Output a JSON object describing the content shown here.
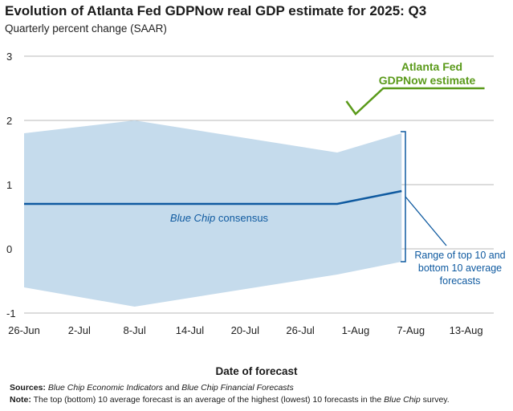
{
  "title": "Evolution of Atlanta Fed GDPNow real GDP estimate for 2025: Q3",
  "subtitle": "Quarterly percent change (SAAR)",
  "xlabel": "Date of forecast",
  "sources_label": "Sources:",
  "sources_part1": "Blue Chip Economic Indicators",
  "sources_and": " and ",
  "sources_part2": "Blue Chip Financial Forecasts",
  "note_label": "Note:",
  "note_text1": " The top (bottom) 10 average forecast is an average of the highest (lowest) 10 forecasts in the ",
  "note_italic": "Blue Chip",
  "note_text2": " survey.",
  "colors": {
    "range_fill": "#c5dbec",
    "consensus_line": "#0f5aa0",
    "gdpnow_line": "#5a9a1a",
    "grid": "#b8b8b8"
  },
  "chart_data": {
    "type": "line",
    "x_ticks": [
      "26-Jun",
      "2-Jul",
      "8-Jul",
      "14-Jul",
      "20-Jul",
      "26-Jul",
      "1-Aug",
      "7-Aug",
      "13-Aug"
    ],
    "y_ticks": [
      3,
      2,
      1,
      0,
      -1
    ],
    "ylim": [
      -1,
      3
    ],
    "xlim": [
      "2025-06-26",
      "2025-08-16"
    ],
    "grid": true,
    "series": [
      {
        "kind": "band",
        "upper": [
          {
            "x": "2025-06-26",
            "y": 1.8
          },
          {
            "x": "2025-07-08",
            "y": 2.0
          },
          {
            "x": "2025-07-30",
            "y": 1.5
          },
          {
            "x": "2025-08-06",
            "y": 1.8
          }
        ],
        "lower": [
          {
            "x": "2025-06-26",
            "y": -0.6
          },
          {
            "x": "2025-07-08",
            "y": -0.9
          },
          {
            "x": "2025-07-30",
            "y": -0.4
          },
          {
            "x": "2025-08-06",
            "y": -0.2
          }
        ]
      },
      {
        "kind": "line",
        "points": [
          {
            "x": "2025-06-26",
            "y": 0.7
          },
          {
            "x": "2025-07-30",
            "y": 0.7
          },
          {
            "x": "2025-08-06",
            "y": 0.9
          }
        ]
      },
      {
        "kind": "line",
        "points": [
          {
            "x": "2025-07-31",
            "y": 2.3
          },
          {
            "x": "2025-08-01",
            "y": 2.1
          },
          {
            "x": "2025-08-04",
            "y": 2.5
          },
          {
            "x": "2025-08-15",
            "y": 2.5
          }
        ]
      }
    ],
    "annotations": {
      "gdpnow_line1": "Atlanta Fed",
      "gdpnow_line2": "GDPNow estimate",
      "consensus_italic": "Blue Chip",
      "consensus_rest": " consensus",
      "range_line1": "Range of top 10 and",
      "range_line2": "bottom 10 average",
      "range_line3": "forecasts"
    }
  }
}
